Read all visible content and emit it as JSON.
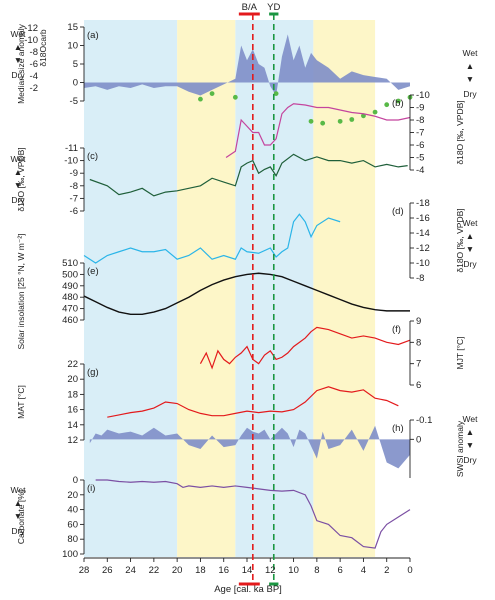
{
  "chart_data": {
    "type": "line",
    "xlabel": "Age [cal. ka BP]",
    "xlim": [
      28,
      0
    ],
    "x_ticks": [
      28,
      26,
      24,
      22,
      20,
      18,
      16,
      14,
      12,
      10,
      8,
      6,
      4,
      2,
      0
    ],
    "shading": [
      {
        "from": 28,
        "to": 20,
        "color": "#d9eef7"
      },
      {
        "from": 20,
        "to": 15,
        "color": "#fdf6c8"
      },
      {
        "from": 15,
        "to": 8.3,
        "color": "#d9eef7"
      },
      {
        "from": 8.3,
        "to": 3,
        "color": "#fdf6c8"
      }
    ],
    "events": [
      {
        "label": "B/A",
        "from": 14.7,
        "to": 12.9,
        "line_at": 13.5,
        "color": "#e31a1c"
      },
      {
        "label": "YD",
        "from": 12.1,
        "to": 11.3,
        "line_at": 11.7,
        "color": "#1a9641"
      }
    ],
    "panels": [
      {
        "id": "a",
        "label": "(a)",
        "ylabel": "Median size anomaly",
        "y_ticks": [
          -5,
          0,
          5,
          10,
          15
        ],
        "second_axis": {
          "label": "δ18Ocarb",
          "ticks": [
            -12,
            -10,
            -8,
            -6,
            -4,
            -2
          ],
          "color": "#58b947"
        },
        "series": [
          {
            "name": "median size anomaly",
            "type": "area",
            "color": "#7e8ec8",
            "x": [
              28,
              27,
              26,
              25,
              24,
              23,
              22,
              21,
              20,
              19,
              18,
              17,
              16,
              15,
              14.5,
              14,
              13.5,
              13,
              12.5,
              12,
              11.5,
              11,
              10.5,
              10,
              9.5,
              9,
              8.5,
              8,
              7,
              6,
              5,
              4,
              3,
              2,
              1,
              0
            ],
            "y": [
              -1.5,
              -1.0,
              -2.0,
              -1.0,
              -1.5,
              -0.5,
              -1.5,
              -1.0,
              -1.0,
              -2.5,
              -3.5,
              -2.0,
              -0.5,
              1.0,
              10.0,
              6.0,
              9.0,
              5.0,
              4.0,
              -1.0,
              -3.5,
              7.0,
              13.0,
              6.0,
              10.0,
              4.0,
              8.0,
              6.0,
              4.0,
              1.0,
              3.0,
              2.0,
              1.5,
              1.0,
              -2.0,
              -1.0
            ]
          },
          {
            "name": "δ18Ocarb",
            "type": "points",
            "color": "#58b947",
            "x": [
              18.0,
              17.0,
              15.0,
              11.5,
              8.5,
              7.5,
              6.0,
              5.0,
              4.0,
              3.0,
              2.0,
              1.0,
              0.0
            ],
            "y": [
              -4.5,
              -3.0,
              -4.0,
              -3.0,
              -10.5,
              -11.0,
              -10.5,
              -10.0,
              -9.0,
              -8.0,
              -6.0,
              -5.0,
              -4.0
            ]
          }
        ]
      },
      {
        "id": "b",
        "label": "(b)",
        "ylabel": "δ18O [‰, VPDB]",
        "y_ticks": [
          -10,
          -9,
          -8,
          -7,
          -6,
          -5,
          -4
        ],
        "color": "#c4449e",
        "series": [
          {
            "name": "δ18O (b)",
            "type": "line",
            "color": "#c4449e",
            "x": [
              15.8,
              15.0,
              14.5,
              14.0,
              13.5,
              13.0,
              12.5,
              12.0,
              11.5,
              11.0,
              10.5,
              10.0,
              9.0,
              8.0,
              7.0,
              6.0,
              5.0,
              4.0,
              3.0,
              2.0,
              1.0,
              0.0
            ],
            "y": [
              -5.0,
              -5.5,
              -8.0,
              -7.5,
              -7.0,
              -7.0,
              -6.0,
              -6.0,
              -6.5,
              -8.5,
              -9.0,
              -9.3,
              -9.2,
              -9.0,
              -9.0,
              -8.8,
              -8.6,
              -8.5,
              -8.3,
              -8.0,
              -8.0,
              -8.2
            ]
          }
        ]
      },
      {
        "id": "c",
        "label": "(c)",
        "ylabel": "δ18O [‰, VPDB]",
        "y_ticks": [
          -11,
          -10,
          -9,
          -8,
          -7,
          -6
        ],
        "color": "#1f5f3a",
        "series": [
          {
            "name": "δ18O (c)",
            "type": "line",
            "color": "#1f5f3a",
            "x": [
              27.5,
              26.0,
              25.0,
              24.0,
              23.0,
              22.0,
              21.0,
              20.0,
              19.0,
              18.0,
              17.0,
              16.0,
              15.0,
              14.5,
              14.0,
              13.5,
              13.0,
              12.5,
              12.0,
              11.5,
              11.0,
              10.0,
              9.0,
              8.0,
              7.0,
              6.0,
              5.0,
              4.0,
              3.0,
              2.0,
              1.0,
              0.2
            ],
            "y": [
              -8.5,
              -8.0,
              -7.3,
              -7.5,
              -7.8,
              -7.2,
              -7.5,
              -7.6,
              -7.8,
              -8.0,
              -8.6,
              -8.3,
              -8.0,
              -9.5,
              -9.8,
              -10.0,
              -9.0,
              -9.3,
              -9.5,
              -8.8,
              -9.8,
              -10.5,
              -10.0,
              -10.3,
              -10.0,
              -10.0,
              -9.8,
              -10.0,
              -9.5,
              -9.7,
              -9.5,
              -9.6
            ]
          }
        ]
      },
      {
        "id": "d",
        "label": "(d)",
        "ylabel": "δ18O [‰, VPDB]",
        "y_ticks": [
          -18,
          -16,
          -14,
          -12,
          -10,
          -8
        ],
        "color": "#2bb5e8",
        "series": [
          {
            "name": "δ18O (d)",
            "type": "line",
            "color": "#2bb5e8",
            "x": [
              28.0,
              27.0,
              26.0,
              25.0,
              24.0,
              23.0,
              22.0,
              21.0,
              20.0,
              19.0,
              18.0,
              17.0,
              16.0,
              15.0,
              14.5,
              14.0,
              13.0,
              12.0,
              11.5,
              11.0,
              10.5,
              10.0,
              9.5,
              9.0,
              8.5,
              8.0,
              7.0,
              6.0
            ],
            "y": [
              -11.0,
              -10.0,
              -11.0,
              -11.5,
              -12.0,
              -11.5,
              -11.5,
              -11.8,
              -10.5,
              -11.0,
              -12.0,
              -10.5,
              -11.0,
              -10.5,
              -12.0,
              -11.5,
              -11.3,
              -12.0,
              -10.8,
              -11.5,
              -12.0,
              -15.5,
              -16.5,
              -15.5,
              -13.5,
              -15.0,
              -16.0,
              -15.5
            ]
          }
        ]
      },
      {
        "id": "e",
        "label": "(e)",
        "ylabel": "Solar insolation [25 °N, W m⁻²]",
        "y_ticks": [
          460,
          470,
          480,
          490,
          500,
          510
        ],
        "series": [
          {
            "name": "solar insolation",
            "type": "line",
            "color": "#111111",
            "x": [
              28,
              27,
              26,
              25,
              24,
              23,
              22,
              21,
              20,
              19,
              18,
              17,
              16,
              15,
              14,
              13,
              12,
              11,
              10,
              9,
              8,
              7,
              6,
              5,
              4,
              3,
              2,
              1,
              0
            ],
            "y": [
              481,
              476,
              471,
              467,
              465,
              465,
              467,
              470,
              475,
              480,
              486,
              491,
              495,
              498,
              500,
              501,
              500,
              498,
              494,
              490,
              486,
              482,
              478,
              474,
              471,
              469,
              468,
              468,
              468
            ]
          }
        ]
      },
      {
        "id": "f",
        "label": "(f)",
        "ylabel": "MJT [°C]",
        "y_ticks": [
          6,
          7,
          8,
          9
        ],
        "color": "#e31a1c",
        "series": [
          {
            "name": "MJT",
            "type": "line",
            "color": "#e31a1c",
            "x": [
              18.0,
              17.5,
              17.0,
              16.5,
              16.0,
              15.5,
              15.0,
              14.5,
              14.0,
              13.5,
              13.0,
              12.5,
              12.0,
              11.5,
              11.0,
              10.5,
              10.0,
              9.5,
              9.0,
              8.5,
              8.0,
              7.0,
              6.0,
              5.0,
              4.0,
              3.0,
              2.0,
              1.0,
              0.0
            ],
            "y": [
              7.0,
              7.5,
              6.8,
              7.6,
              7.2,
              7.0,
              7.3,
              7.5,
              7.8,
              7.2,
              7.0,
              7.4,
              7.6,
              7.2,
              7.3,
              7.5,
              7.8,
              8.0,
              8.2,
              8.5,
              8.7,
              8.6,
              8.4,
              8.2,
              8.3,
              8.2,
              8.0,
              7.9,
              8.1
            ]
          }
        ]
      },
      {
        "id": "g",
        "label": "(g)",
        "ylabel": "MAT [°C]",
        "y_ticks": [
          12,
          14,
          16,
          18,
          20,
          22
        ],
        "color": "#e31a1c",
        "series": [
          {
            "name": "MAT",
            "type": "line",
            "color": "#e31a1c",
            "x": [
              26.0,
              25.0,
              24.0,
              23.0,
              22.0,
              21.0,
              20.0,
              19.0,
              18.0,
              17.0,
              16.0,
              15.0,
              14.0,
              13.0,
              12.0,
              11.0,
              10.0,
              9.0,
              8.0,
              7.0,
              6.0,
              5.0,
              4.0,
              3.0,
              2.0,
              1.0
            ],
            "y": [
              15.0,
              15.3,
              15.6,
              15.8,
              16.2,
              17.0,
              16.8,
              16.0,
              15.5,
              15.2,
              15.2,
              15.5,
              15.8,
              15.6,
              15.8,
              15.7,
              16.0,
              17.0,
              18.5,
              19.0,
              18.5,
              18.3,
              18.6,
              17.5,
              17.2,
              16.5
            ]
          }
        ]
      },
      {
        "id": "h",
        "label": "(h)",
        "ylabel": "SWSI anomaly",
        "y_ticks": [
          -0.1,
          0
        ],
        "series": [
          {
            "name": "SWSI anomaly",
            "type": "area",
            "color": "#7e8ec8",
            "x": [
              27.5,
              27.0,
              26.5,
              26.0,
              25.0,
              24.0,
              23.0,
              22.0,
              21.0,
              20.0,
              19.0,
              18.0,
              17.0,
              16.0,
              15.0,
              14.5,
              14.0,
              13.5,
              13.0,
              12.5,
              12.0,
              11.0,
              10.5,
              10.0,
              9.5,
              9.0,
              8.0,
              7.5,
              7.0,
              6.0,
              5.0,
              4.0,
              3.0,
              2.0,
              1.0,
              0.0
            ],
            "y": [
              0.02,
              -0.03,
              -0.02,
              -0.05,
              -0.03,
              -0.04,
              -0.02,
              -0.06,
              -0.02,
              -0.03,
              0.03,
              0.05,
              -0.02,
              0.04,
              0.03,
              -0.02,
              -0.06,
              -0.04,
              -0.03,
              -0.05,
              0.0,
              -0.06,
              -0.03,
              0.04,
              -0.05,
              -0.03,
              0.1,
              -0.04,
              0.05,
              0.03,
              -0.05,
              0.06,
              -0.07,
              0.12,
              0.15,
              0.08
            ]
          }
        ]
      },
      {
        "id": "i",
        "label": "(i)",
        "ylabel": "Carbonate [%]",
        "y_ticks": [
          0,
          20,
          40,
          60,
          80,
          100
        ],
        "color": "#7b4fa3",
        "series": [
          {
            "name": "Carbonate",
            "type": "line",
            "color": "#7b4fa3",
            "x": [
              27.0,
              26.0,
              25.0,
              24.0,
              23.0,
              22.0,
              21.0,
              20.0,
              19.5,
              19.0,
              18.0,
              17.0,
              16.0,
              15.0,
              14.0,
              13.0,
              12.0,
              11.0,
              10.0,
              9.0,
              8.5,
              8.0,
              7.0,
              6.0,
              5.0,
              4.0,
              3.0,
              2.5,
              2.0,
              1.0,
              0.0
            ],
            "y": [
              0.0,
              0.0,
              2.0,
              3.0,
              2.0,
              3.0,
              2.0,
              5.0,
              10.0,
              8.0,
              10.0,
              8.0,
              10.0,
              8.0,
              10.0,
              12.0,
              14.0,
              15.0,
              14.0,
              20.0,
              35.0,
              55.0,
              60.0,
              75.0,
              78.0,
              90.0,
              92.0,
              70.0,
              60.0,
              50.0,
              40.0
            ]
          }
        ]
      }
    ],
    "right_labels": {
      "wet": "Wet",
      "dry": "Dry"
    }
  }
}
